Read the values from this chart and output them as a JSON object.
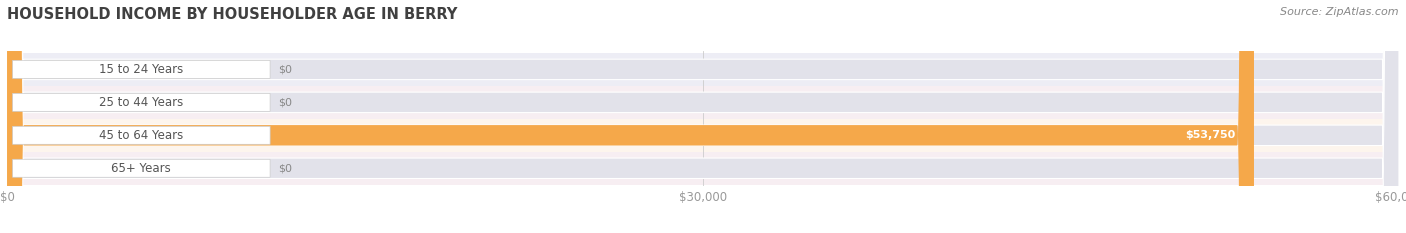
{
  "title": "HOUSEHOLD INCOME BY HOUSEHOLDER AGE IN BERRY",
  "source": "Source: ZipAtlas.com",
  "categories": [
    "15 to 24 Years",
    "25 to 44 Years",
    "45 to 64 Years",
    "65+ Years"
  ],
  "values": [
    0,
    0,
    53750,
    0
  ],
  "bar_colors": [
    "#a8a8d8",
    "#f093a8",
    "#f5a84a",
    "#f093a8"
  ],
  "label_pill_colors": [
    "#b0b0e0",
    "#f093a8",
    "#f5a84a",
    "#f09898"
  ],
  "xlim": [
    0,
    60000
  ],
  "xticks": [
    0,
    30000,
    60000
  ],
  "xtick_labels": [
    "$0",
    "$30,000",
    "$60,000"
  ],
  "bar_height": 0.62,
  "figsize": [
    14.06,
    2.33
  ],
  "dpi": 100,
  "row_bg_colors": [
    "#ededf5",
    "#f7eef2",
    "#fdf5ed",
    "#f7eef2"
  ],
  "track_color": "#e2e2ea",
  "title_color": "#404040",
  "title_fontsize": 10.5,
  "source_fontsize": 8,
  "axis_label_color": "#999999",
  "value_fontsize": 8,
  "cat_fontsize": 8.5
}
